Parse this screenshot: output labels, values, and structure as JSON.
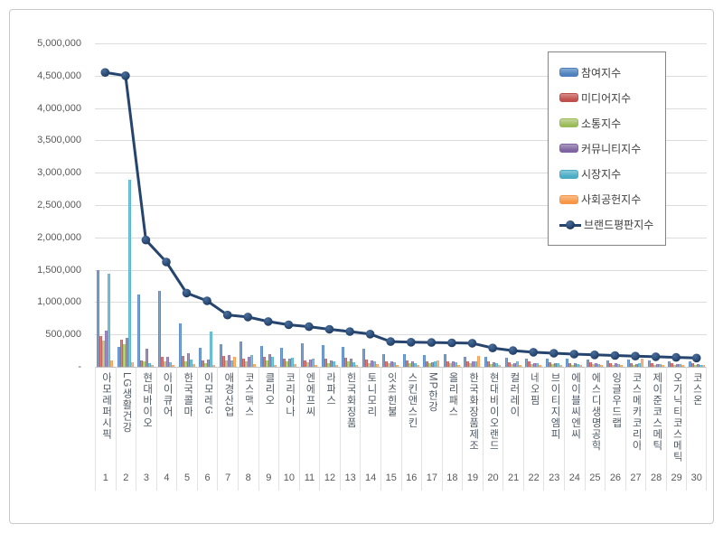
{
  "chart_data": {
    "type": "bar",
    "overlay": "line",
    "title": "",
    "xlabel": "",
    "ylabel": "",
    "ylim": [
      0,
      5000000
    ],
    "y_tick_step": 500000,
    "y_tick_labels": [
      "-",
      "500,000",
      "1,000,000",
      "1,500,000",
      "2,000,000",
      "2,500,000",
      "3,000,000",
      "3,500,000",
      "4,000,000",
      "4,500,000",
      "5,000,000"
    ],
    "grid": true,
    "legend_position": "top-right",
    "categories": [
      "아모레퍼시픽",
      "LG생활건강",
      "현대바이오",
      "아이큐어",
      "한국콜마",
      "아모레G",
      "애경산업",
      "코스맥스",
      "클리오",
      "코리아나",
      "엔에프씨",
      "라파스",
      "한국화장품",
      "토니모리",
      "잇츠한불",
      "스킨앤스킨",
      "MP한강",
      "올리패스",
      "한국화장품제조",
      "현대바이오랜드",
      "컬러레이",
      "네오팜",
      "브이티지엠피",
      "에이블씨엔씨",
      "에스디생명공학",
      "잉글우드랩",
      "코스메카코리아",
      "제이준코스메틱",
      "오가닉티코스메틱",
      "코스온"
    ],
    "ranks": [
      1,
      2,
      3,
      4,
      5,
      6,
      7,
      8,
      9,
      10,
      11,
      12,
      13,
      14,
      15,
      16,
      17,
      18,
      19,
      20,
      21,
      22,
      23,
      24,
      25,
      26,
      27,
      28,
      29,
      30
    ],
    "series": [
      {
        "id": "participation-index",
        "name": "참여지수",
        "type": "bar",
        "color": "#4e81bd",
        "color_light": "#85aad4",
        "values": [
          1500000,
          310000,
          1120000,
          1170000,
          670000,
          300000,
          350000,
          390000,
          320000,
          290000,
          360000,
          330000,
          310000,
          280000,
          200000,
          190000,
          180000,
          200000,
          160000,
          150000,
          140000,
          130000,
          120000,
          130000,
          110000,
          100000,
          110000,
          100000,
          90000,
          80000
        ]
      },
      {
        "id": "media-index",
        "name": "미디어지수",
        "type": "bar",
        "color": "#c0504d",
        "color_light": "#d88b89",
        "values": [
          480000,
          420000,
          100000,
          150000,
          170000,
          100000,
          170000,
          120000,
          150000,
          130000,
          100000,
          120000,
          140000,
          110000,
          90000,
          100000,
          90000,
          80000,
          90000,
          80000,
          70000,
          80000,
          70000,
          60000,
          70000,
          60000,
          60000,
          50000,
          50000,
          50000
        ]
      },
      {
        "id": "communication-index",
        "name": "소통지수",
        "type": "bar",
        "color": "#9bbb59",
        "color_light": "#c3d69b",
        "values": [
          410000,
          350000,
          80000,
          80000,
          90000,
          60000,
          100000,
          90000,
          100000,
          80000,
          70000,
          60000,
          80000,
          60000,
          50000,
          60000,
          50000,
          50000,
          60000,
          40000,
          40000,
          40000,
          40000,
          30000,
          40000,
          30000,
          30000,
          30000,
          30000,
          30000
        ]
      },
      {
        "id": "community-index",
        "name": "커뮤니티지수",
        "type": "bar",
        "color": "#8064a2",
        "color_light": "#a99bc1",
        "values": [
          560000,
          450000,
          280000,
          160000,
          210000,
          110000,
          180000,
          150000,
          190000,
          120000,
          110000,
          100000,
          130000,
          100000,
          80000,
          90000,
          70000,
          80000,
          80000,
          70000,
          60000,
          60000,
          60000,
          50000,
          50000,
          50000,
          40000,
          40000,
          40000,
          40000
        ]
      },
      {
        "id": "market-index",
        "name": "시장지수",
        "type": "bar",
        "color": "#4bacc6",
        "color_light": "#85c9da",
        "values": [
          1440000,
          2890000,
          60000,
          70000,
          110000,
          540000,
          100000,
          180000,
          150000,
          140000,
          130000,
          90000,
          70000,
          80000,
          70000,
          60000,
          80000,
          70000,
          90000,
          60000,
          80000,
          50000,
          50000,
          40000,
          40000,
          40000,
          50000,
          40000,
          40000,
          30000
        ]
      },
      {
        "id": "social-contribution-index",
        "name": "사회공헌지수",
        "type": "bar",
        "color": "#f79646",
        "color_light": "#fbbd8b",
        "values": [
          100000,
          70000,
          30000,
          30000,
          40000,
          30000,
          150000,
          40000,
          30000,
          40000,
          30000,
          30000,
          30000,
          40000,
          30000,
          30000,
          100000,
          30000,
          170000,
          30000,
          30000,
          30000,
          30000,
          30000,
          30000,
          30000,
          130000,
          30000,
          30000,
          30000
        ]
      },
      {
        "id": "brand-reputation-index",
        "name": "브랜드평판지수",
        "type": "line",
        "color": "#26456e",
        "color_light": "#4a6f9e",
        "values": [
          4550000,
          4500000,
          1960000,
          1620000,
          1140000,
          1020000,
          800000,
          770000,
          700000,
          650000,
          620000,
          580000,
          545000,
          505000,
          390000,
          380000,
          375000,
          370000,
          365000,
          290000,
          250000,
          225000,
          210000,
          195000,
          185000,
          175000,
          165000,
          155000,
          145000,
          135000
        ]
      }
    ]
  }
}
